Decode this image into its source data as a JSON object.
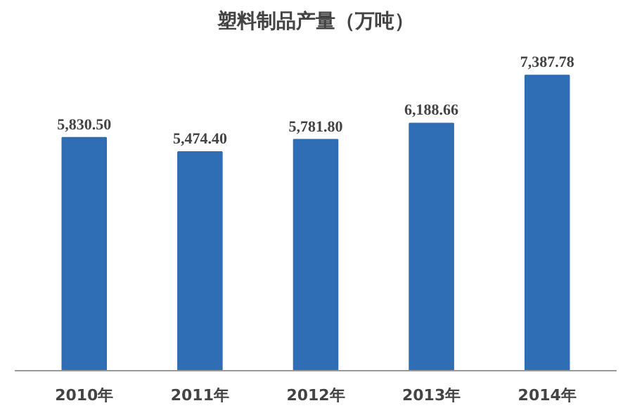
{
  "chart_data": {
    "type": "bar",
    "title": "塑料制品产量（万吨）",
    "categories": [
      "2010年",
      "2011年",
      "2012年",
      "2013年",
      "2014年"
    ],
    "values": [
      5830.5,
      5474.4,
      5781.8,
      6188.66,
      7387.78
    ],
    "value_labels": [
      "5,830.50",
      "5,474.40",
      "5,781.80",
      "6,188.66",
      "7,387.78"
    ],
    "color": "#2f6db5"
  }
}
